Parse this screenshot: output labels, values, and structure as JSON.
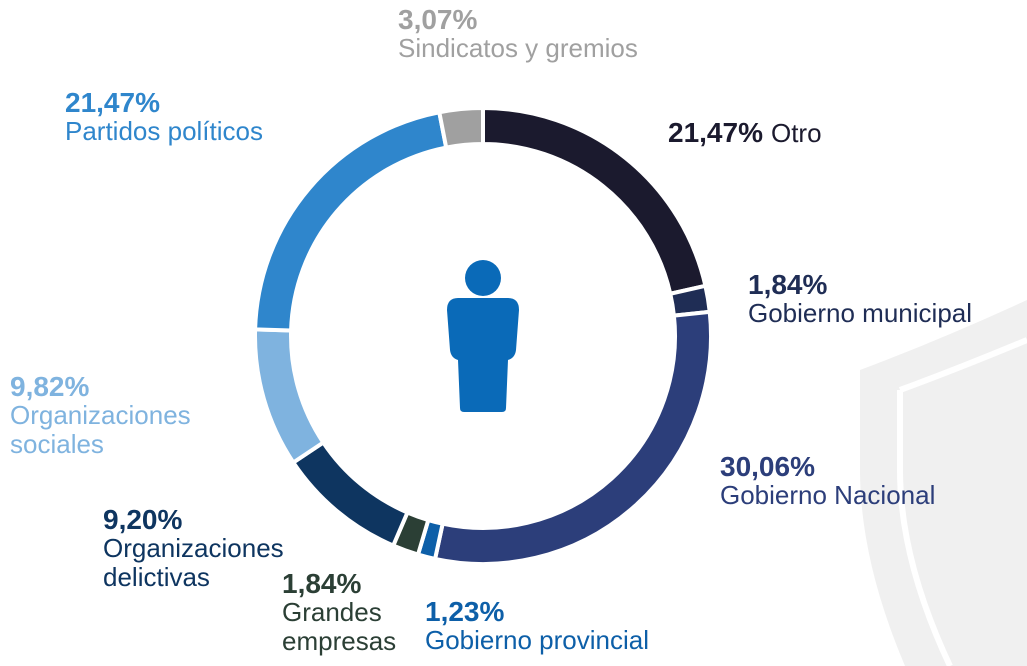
{
  "chart_data": {
    "type": "donut",
    "categories": [
      "Otro",
      "Gobierno municipal",
      "Gobierno Nacional",
      "Gobierno provincial",
      "Grandes empresas",
      "Organizaciones delictivas",
      "Organizaciones sociales",
      "Partidos políticos",
      "Sindicatos y gremios"
    ],
    "values": [
      21.47,
      1.84,
      30.06,
      1.23,
      1.84,
      9.2,
      9.82,
      21.47,
      3.07
    ],
    "value_labels": [
      "21,47%",
      "1,84%",
      "30,06%",
      "1,23%",
      "1,84%",
      "9,20%",
      "9,82%",
      "21,47%",
      "3,07%"
    ],
    "colors": [
      "#1b1a2e",
      "#1f2d55",
      "#2c3e7a",
      "#0d5fa8",
      "#2b3f35",
      "#0e3560",
      "#7fb3df",
      "#2f86cc",
      "#a0a0a0"
    ]
  }
}
